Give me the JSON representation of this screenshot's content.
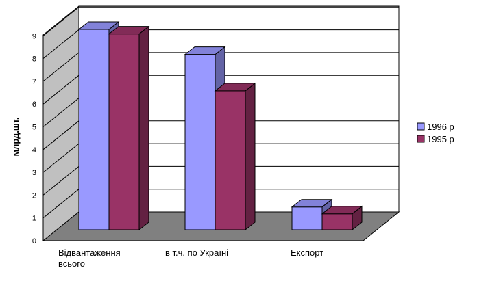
{
  "chart_data": {
    "type": "bar",
    "title": "",
    "xlabel": "",
    "ylabel": "млрд.шт.",
    "ylim": [
      0,
      9
    ],
    "yticks": [
      0,
      1,
      2,
      3,
      4,
      5,
      6,
      7,
      8,
      9
    ],
    "grid": true,
    "legend_position": "right",
    "categories": [
      [
        "Відвантаження",
        "всього"
      ],
      [
        "в т.ч. по Україні"
      ],
      [
        "Експорт"
      ]
    ],
    "series": [
      {
        "name": "1996 р",
        "values": [
          8.8,
          7.7,
          1.0
        ],
        "color": "#9999ff"
      },
      {
        "name": "1995 р",
        "values": [
          8.6,
          6.1,
          0.7
        ],
        "color": "#993366"
      }
    ]
  }
}
